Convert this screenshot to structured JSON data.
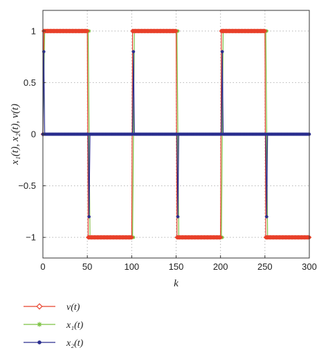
{
  "chart_data": {
    "type": "line",
    "xlabel": "k",
    "ylabel": "x₁(t), x₂(t), v(t)",
    "xlim": [
      0,
      300
    ],
    "ylim": [
      -1.2,
      1.2
    ],
    "x_ticks": [
      0,
      50,
      100,
      150,
      200,
      250,
      300
    ],
    "y_ticks": [
      -1,
      -0.5,
      0,
      0.5,
      1
    ],
    "x_tick_labels": [
      "0",
      "50",
      "100",
      "150",
      "200",
      "250",
      "300"
    ],
    "y_tick_labels": [
      "−1",
      "−0.5",
      "0",
      "0.5",
      "1"
    ],
    "grid": true,
    "legend_position": "below",
    "series": [
      {
        "name": "v(t)",
        "color": "#e8402a",
        "marker": "diamond",
        "x": [
          0,
          1,
          50,
          51,
          100,
          101,
          150,
          151,
          200,
          201,
          250,
          251,
          300
        ],
        "y": [
          0,
          1,
          1,
          -1,
          -1,
          1,
          1,
          -1,
          -1,
          1,
          1,
          -1,
          -1
        ]
      },
      {
        "name": "x₁(t)",
        "color": "#7cc242",
        "marker": "star",
        "x": [
          0,
          2,
          51,
          53,
          101,
          103,
          151,
          153,
          201,
          203,
          251,
          253,
          300
        ],
        "y": [
          0,
          1,
          1,
          -1,
          -1,
          1,
          1,
          -1,
          -1,
          1,
          1,
          -1,
          -1
        ]
      },
      {
        "name": "x₂(t)",
        "color": "#2b2f8f",
        "marker": "circle",
        "x": [
          0,
          1,
          2,
          3,
          51,
          52,
          53,
          54,
          101,
          102,
          103,
          104,
          151,
          152,
          153,
          154,
          201,
          202,
          203,
          204,
          251,
          252,
          253,
          254,
          300
        ],
        "y": [
          0,
          0.8,
          0,
          0,
          0,
          -0.8,
          0,
          0,
          0,
          0.8,
          0,
          0,
          0,
          -0.8,
          0,
          0,
          0,
          0.8,
          0,
          0,
          0,
          -0.8,
          0,
          0,
          0
        ]
      }
    ]
  }
}
